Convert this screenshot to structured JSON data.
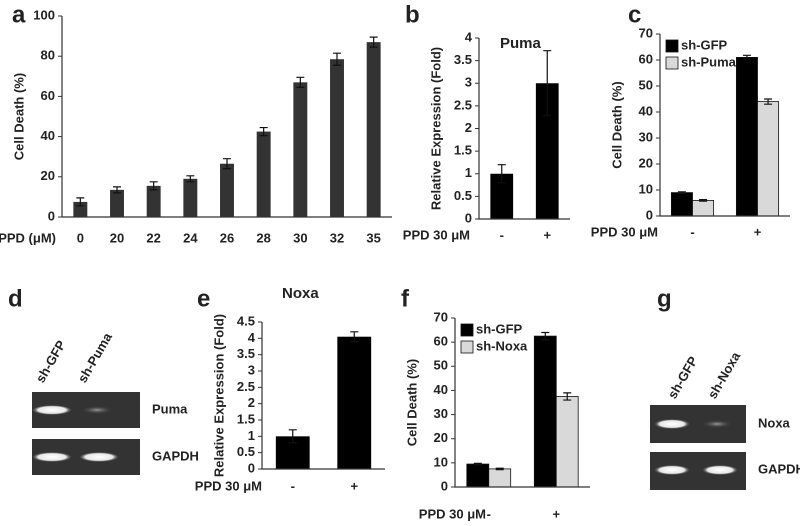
{
  "chart_data": [
    {
      "type": "bar",
      "label": "a",
      "ylabel": "Cell Death (%)",
      "xlabel": "PPD (μM)",
      "categories": [
        "0",
        "20",
        "22",
        "24",
        "26",
        "28",
        "30",
        "32",
        "35"
      ],
      "values": [
        7.5,
        13.5,
        15.5,
        19,
        26.5,
        42.5,
        67,
        78.5,
        87
      ],
      "errors": [
        2,
        1.5,
        2,
        1.5,
        2.5,
        2,
        2.5,
        3,
        2.5
      ],
      "color": "#333333",
      "ylim": [
        0,
        100
      ],
      "yticks": [
        0,
        20,
        40,
        60,
        80,
        100
      ]
    },
    {
      "type": "bar",
      "label": "b",
      "title": "Puma",
      "ylabel": "Relative Expression (Fold)",
      "xlabel": "PPD 30 μM",
      "categories": [
        "-",
        "+"
      ],
      "values": [
        1,
        3
      ],
      "errors": [
        0.2,
        0.72
      ],
      "color": "#000000",
      "ylim": [
        0,
        4
      ],
      "yticks": [
        0,
        0.5,
        1,
        1.5,
        2,
        2.5,
        3,
        3.5,
        4
      ]
    },
    {
      "type": "bar",
      "label": "c",
      "ylabel": "Cell Death (%)",
      "xlabel": "PPD 30 μM",
      "categories": [
        "-",
        "+"
      ],
      "series": [
        {
          "name": "sh-GFP",
          "color": "#000000",
          "values": [
            9,
            61
          ],
          "errors": [
            0.3,
            0.8
          ]
        },
        {
          "name": "sh-Puma",
          "color": "#d9d9d9",
          "values": [
            6,
            44
          ],
          "errors": [
            0.3,
            1
          ]
        }
      ],
      "ylim": [
        0,
        70
      ],
      "yticks": [
        0,
        10,
        20,
        30,
        40,
        50,
        60,
        70
      ],
      "legend": "upper left"
    },
    {
      "type": "bar",
      "label": "e",
      "title": "Noxa",
      "ylabel": "Relative Expression (Fold)",
      "xlabel": "PPD 30 μM",
      "categories": [
        "-",
        "+"
      ],
      "values": [
        1,
        4.05
      ],
      "errors": [
        0.2,
        0.15
      ],
      "color": "#000000",
      "ylim": [
        0,
        4.5
      ],
      "yticks": [
        0,
        0.5,
        1,
        1.5,
        2,
        2.5,
        3,
        3.5,
        4,
        4.5
      ]
    },
    {
      "type": "bar",
      "label": "f",
      "ylabel": "Cell Death (%)",
      "xlabel": "PPD 30 μM",
      "categories": [
        "-",
        "+"
      ],
      "series": [
        {
          "name": "sh-GFP",
          "color": "#000000",
          "values": [
            9.5,
            62.5
          ],
          "errors": [
            0.3,
            1.5
          ]
        },
        {
          "name": "sh-Noxa",
          "color": "#d9d9d9",
          "values": [
            7.5,
            37.5
          ],
          "errors": [
            0.3,
            1.5
          ]
        }
      ],
      "ylim": [
        0,
        70
      ],
      "yticks": [
        0,
        10,
        20,
        30,
        40,
        50,
        60,
        70
      ],
      "legend": "upper left"
    }
  ],
  "blots": [
    {
      "label": "d",
      "lanes": [
        "sh-GFP",
        "sh-Puma"
      ],
      "rows": [
        "Puma",
        "GAPDH"
      ]
    },
    {
      "label": "g",
      "lanes": [
        "sh-GFP",
        "sh-Noxa"
      ],
      "rows": [
        "Noxa",
        "GAPDH"
      ]
    }
  ]
}
